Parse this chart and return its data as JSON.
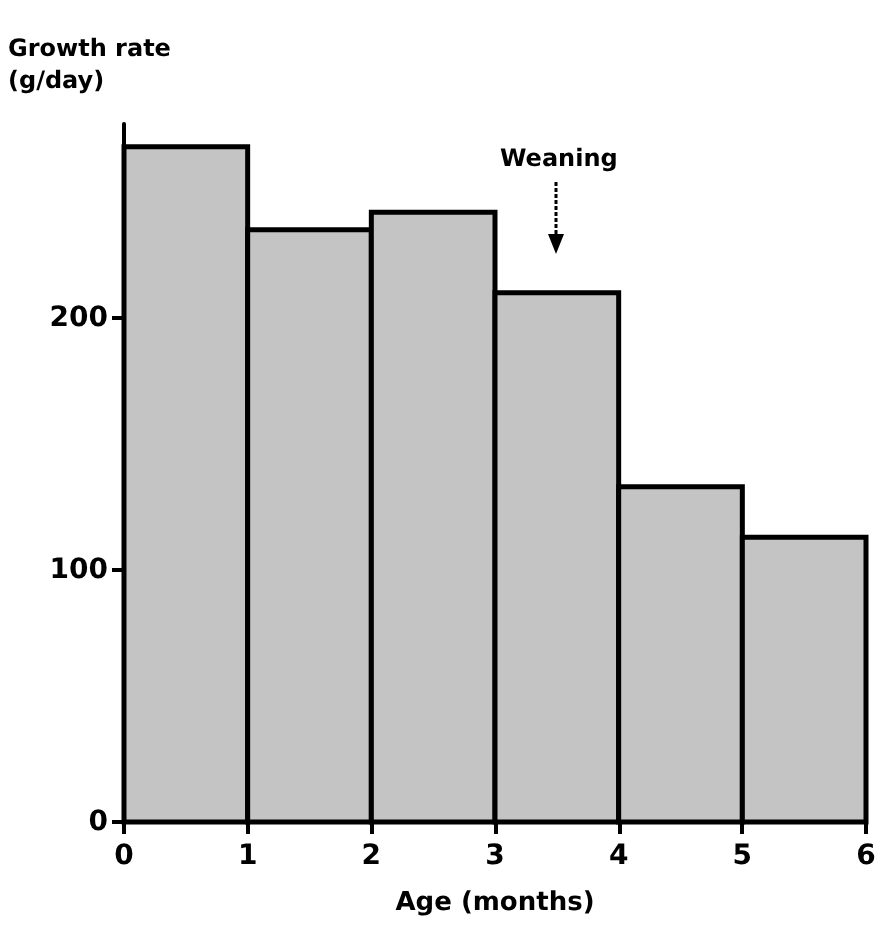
{
  "chart_data": {
    "type": "histogram",
    "xlabel": "Age (months)",
    "ylabel": "Growth rate\n(g/day)",
    "bins": [
      0,
      1,
      2,
      3,
      4,
      5,
      6
    ],
    "values": [
      268,
      235,
      242,
      210,
      133,
      113
    ],
    "color": "#c4c4c4",
    "xlim": [
      0,
      6
    ],
    "xticks": [
      0,
      1,
      2,
      3,
      4,
      5,
      6
    ],
    "ylim": [
      0,
      277
    ],
    "yticks": [
      0,
      100,
      200
    ],
    "annotations": [
      "Weaning"
    ],
    "grid": false
  }
}
